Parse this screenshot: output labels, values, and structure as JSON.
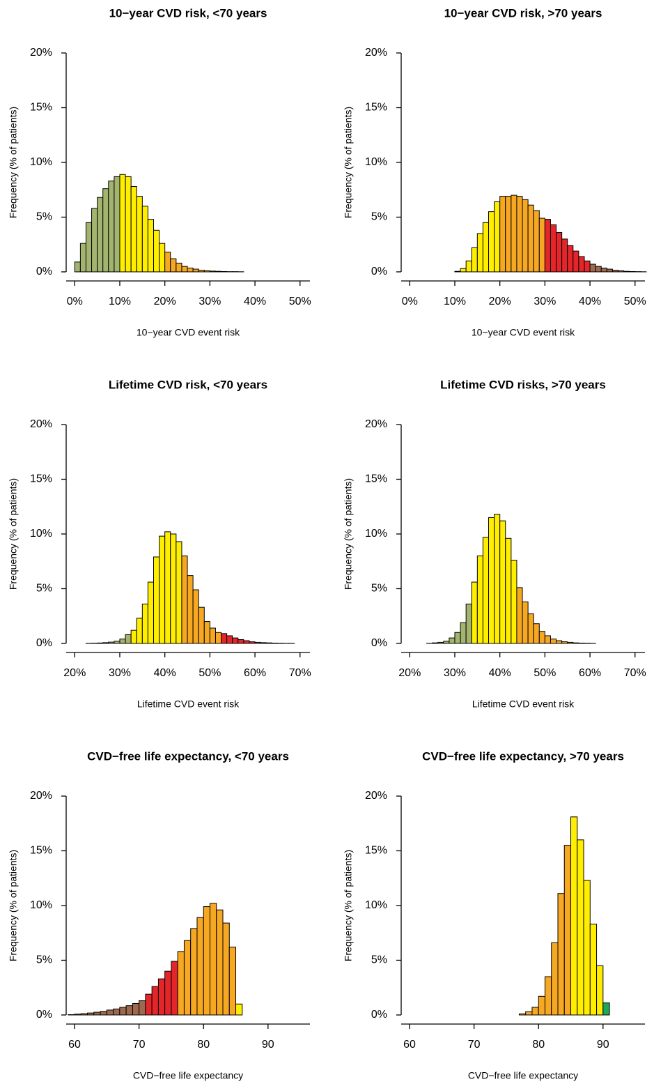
{
  "chart_data": [
    {
      "type": "histogram",
      "title": "10−year CVD risk, <70 years",
      "xlabel": "10−year CVD event risk",
      "ylabel": "Frequency (% of patients)",
      "bins": [
        0,
        1.25,
        2.5,
        3.75,
        5,
        6.25,
        7.5,
        8.75,
        10,
        11.25,
        12.5,
        13.75,
        15,
        16.25,
        17.5,
        18.75,
        20,
        21.25,
        22.5,
        23.75,
        25,
        26.25,
        27.5,
        28.75,
        30,
        31.25,
        32.5,
        33.75,
        35,
        36.25,
        37.5,
        38.75,
        40,
        41.25,
        42.5,
        43.75,
        45,
        46.25,
        47.5,
        48.75,
        50,
        51.25,
        52.5
      ],
      "values": [
        0.9,
        2.6,
        4.5,
        5.8,
        6.8,
        7.6,
        8.3,
        8.7,
        8.9,
        8.7,
        7.8,
        6.9,
        6.0,
        4.8,
        3.8,
        2.6,
        1.8,
        1.2,
        0.8,
        0.5,
        0.35,
        0.25,
        0.15,
        0.1,
        0.07,
        0.05,
        0.03,
        0.02,
        0.02,
        0.01,
        0,
        0,
        0,
        0,
        0,
        0,
        0,
        0,
        0,
        0,
        0,
        0
      ],
      "colors": [
        "#a3b46f",
        "#a3b46f",
        "#a3b46f",
        "#a3b46f",
        "#a3b46f",
        "#a3b46f",
        "#a3b46f",
        "#a3b46f",
        "#ffee00",
        "#ffee00",
        "#ffee00",
        "#ffee00",
        "#ffee00",
        "#ffee00",
        "#ffee00",
        "#ffee00",
        "#f7a823",
        "#f7a823",
        "#f7a823",
        "#f7a823",
        "#f7a823",
        "#f7a823",
        "#f7a823",
        "#f7a823",
        "#f7a823",
        "#f7a823",
        "#f7a823",
        "#f7a823",
        "#f7a823",
        "#f7a823",
        "#f7a823",
        "#f7a823",
        "#f7a823",
        "#f7a823",
        "#f7a823",
        "#f7a823",
        "#f7a823",
        "#f7a823",
        "#f7a823",
        "#f7a823",
        "#f7a823",
        "#f7a823"
      ],
      "xlim": [
        -1.9,
        52.2
      ],
      "ylim": [
        -0.83,
        20
      ],
      "xticks": [
        {
          "value": 0,
          "label": "0%"
        },
        {
          "value": 10,
          "label": "10%"
        },
        {
          "value": 20,
          "label": "20%"
        },
        {
          "value": 30,
          "label": "30%"
        },
        {
          "value": 40,
          "label": "40%"
        },
        {
          "value": 50,
          "label": "50%"
        }
      ],
      "yticks": [
        {
          "value": 0,
          "label": "0%"
        },
        {
          "value": 5,
          "label": "5%"
        },
        {
          "value": 10,
          "label": "10%"
        },
        {
          "value": 15,
          "label": "15%"
        },
        {
          "value": 20,
          "label": "20%"
        }
      ]
    },
    {
      "type": "histogram",
      "title": "10−year CVD risk, >70 years",
      "xlabel": "10−year CVD event risk",
      "ylabel": "Frequency (% of patients)",
      "bins": [
        0,
        1.25,
        2.5,
        3.75,
        5,
        6.25,
        7.5,
        8.75,
        10,
        11.25,
        12.5,
        13.75,
        15,
        16.25,
        17.5,
        18.75,
        20,
        21.25,
        22.5,
        23.75,
        25,
        26.25,
        27.5,
        28.75,
        30,
        31.25,
        32.5,
        33.75,
        35,
        36.25,
        37.5,
        38.75,
        40,
        41.25,
        42.5,
        43.75,
        45,
        46.25,
        47.5,
        48.75,
        50,
        51.25,
        52.5
      ],
      "values": [
        0,
        0,
        0,
        0,
        0,
        0,
        0,
        0,
        0.05,
        0.3,
        1.0,
        2.2,
        3.5,
        4.5,
        5.5,
        6.4,
        6.9,
        6.9,
        7.0,
        6.9,
        6.6,
        6.1,
        5.6,
        4.9,
        4.8,
        4.3,
        3.6,
        3.0,
        2.4,
        1.9,
        1.4,
        1.0,
        0.7,
        0.5,
        0.35,
        0.25,
        0.15,
        0.1,
        0.05,
        0.03,
        0.02,
        0.01
      ],
      "colors": [
        "#ffee00",
        "#ffee00",
        "#ffee00",
        "#ffee00",
        "#ffee00",
        "#ffee00",
        "#ffee00",
        "#ffee00",
        "#ffee00",
        "#ffee00",
        "#ffee00",
        "#ffee00",
        "#ffee00",
        "#ffee00",
        "#ffee00",
        "#ffee00",
        "#f7a823",
        "#f7a823",
        "#f7a823",
        "#f7a823",
        "#f7a823",
        "#f7a823",
        "#f7a823",
        "#f7a823",
        "#e4262b",
        "#e4262b",
        "#e4262b",
        "#e4262b",
        "#e4262b",
        "#e4262b",
        "#e4262b",
        "#e4262b",
        "#9e6a4f",
        "#9e6a4f",
        "#9e6a4f",
        "#9e6a4f",
        "#9e6a4f",
        "#9e6a4f",
        "#9e6a4f",
        "#9e6a4f",
        "#9e6a4f",
        "#9e6a4f"
      ],
      "xlim": [
        -1.9,
        52.2
      ],
      "ylim": [
        -0.83,
        20
      ],
      "xticks": [
        {
          "value": 0,
          "label": "0%"
        },
        {
          "value": 10,
          "label": "10%"
        },
        {
          "value": 20,
          "label": "20%"
        },
        {
          "value": 30,
          "label": "30%"
        },
        {
          "value": 40,
          "label": "40%"
        },
        {
          "value": 50,
          "label": "50%"
        }
      ],
      "yticks": [
        {
          "value": 0,
          "label": "0%"
        },
        {
          "value": 5,
          "label": "5%"
        },
        {
          "value": 10,
          "label": "10%"
        },
        {
          "value": 15,
          "label": "15%"
        },
        {
          "value": 20,
          "label": "20%"
        }
      ]
    },
    {
      "type": "histogram",
      "title": "Lifetime CVD risk, <70 years",
      "xlabel": "Lifetime CVD event risk",
      "ylabel": "Frequency (% of patients)",
      "bins": [
        20,
        21.25,
        22.5,
        23.75,
        25,
        26.25,
        27.5,
        28.75,
        30,
        31.25,
        32.5,
        33.75,
        35,
        36.25,
        37.5,
        38.75,
        40,
        41.25,
        42.5,
        43.75,
        45,
        46.25,
        47.5,
        48.75,
        50,
        51.25,
        52.5,
        53.75,
        55,
        56.25,
        57.5,
        58.75,
        60,
        61.25,
        62.5,
        63.75,
        65,
        66.25,
        67.5,
        68.75,
        70,
        71.25,
        72.5
      ],
      "values": [
        0,
        0,
        0.01,
        0.02,
        0.04,
        0.07,
        0.12,
        0.2,
        0.4,
        0.8,
        1.2,
        2.3,
        3.6,
        5.6,
        7.9,
        9.8,
        10.2,
        10.0,
        9.3,
        8.0,
        6.2,
        4.9,
        3.3,
        2.0,
        1.4,
        1.0,
        0.9,
        0.7,
        0.5,
        0.35,
        0.25,
        0.15,
        0.1,
        0.07,
        0.05,
        0.03,
        0.02,
        0.01,
        0.01,
        0,
        0,
        0
      ],
      "colors": [
        "#a3b46f",
        "#a3b46f",
        "#a3b46f",
        "#a3b46f",
        "#a3b46f",
        "#a3b46f",
        "#a3b46f",
        "#a3b46f",
        "#a3b46f",
        "#a3b46f",
        "#ffee00",
        "#ffee00",
        "#ffee00",
        "#ffee00",
        "#ffee00",
        "#ffee00",
        "#ffee00",
        "#ffee00",
        "#ffee00",
        "#f7a823",
        "#f7a823",
        "#f7a823",
        "#f7a823",
        "#f7a823",
        "#f7a823",
        "#f7a823",
        "#e4262b",
        "#e4262b",
        "#e4262b",
        "#e4262b",
        "#e4262b",
        "#e4262b",
        "#9e6a4f",
        "#9e6a4f",
        "#9e6a4f",
        "#9e6a4f",
        "#9e6a4f",
        "#9e6a4f",
        "#9e6a4f",
        "#9e6a4f",
        "#9e6a4f",
        "#9e6a4f"
      ],
      "xlim": [
        18.1,
        72.2
      ],
      "ylim": [
        -0.83,
        20
      ],
      "xticks": [
        {
          "value": 20,
          "label": "20%"
        },
        {
          "value": 30,
          "label": "30%"
        },
        {
          "value": 40,
          "label": "40%"
        },
        {
          "value": 50,
          "label": "50%"
        },
        {
          "value": 60,
          "label": "60%"
        },
        {
          "value": 70,
          "label": "70%"
        }
      ],
      "yticks": [
        {
          "value": 0,
          "label": "0%"
        },
        {
          "value": 5,
          "label": "5%"
        },
        {
          "value": 10,
          "label": "10%"
        },
        {
          "value": 15,
          "label": "15%"
        },
        {
          "value": 20,
          "label": "20%"
        }
      ]
    },
    {
      "type": "histogram",
      "title": "Lifetime CVD risks, >70 years",
      "xlabel": "Lifetime CVD event risk",
      "ylabel": "Frequency (% of patients)",
      "bins": [
        20,
        21.25,
        22.5,
        23.75,
        25,
        26.25,
        27.5,
        28.75,
        30,
        31.25,
        32.5,
        33.75,
        35,
        36.25,
        37.5,
        38.75,
        40,
        41.25,
        42.5,
        43.75,
        45,
        46.25,
        47.5,
        48.75,
        50,
        51.25,
        52.5,
        53.75,
        55,
        56.25,
        57.5,
        58.75,
        60,
        61.25,
        62.5,
        63.75,
        65,
        66.25,
        67.5,
        68.75,
        70,
        71.25,
        72.5
      ],
      "values": [
        0,
        0,
        0,
        0.01,
        0.05,
        0.1,
        0.2,
        0.5,
        1.0,
        1.9,
        3.6,
        5.6,
        8.0,
        9.7,
        11.5,
        11.8,
        11.2,
        9.6,
        7.6,
        5.1,
        3.8,
        2.7,
        1.8,
        1.1,
        0.7,
        0.4,
        0.25,
        0.15,
        0.1,
        0.05,
        0.03,
        0.02,
        0.01,
        0,
        0,
        0,
        0,
        0,
        0,
        0,
        0,
        0
      ],
      "colors": [
        "#a3b46f",
        "#a3b46f",
        "#a3b46f",
        "#a3b46f",
        "#a3b46f",
        "#a3b46f",
        "#a3b46f",
        "#a3b46f",
        "#a3b46f",
        "#a3b46f",
        "#a3b46f",
        "#ffee00",
        "#ffee00",
        "#ffee00",
        "#ffee00",
        "#ffee00",
        "#ffee00",
        "#ffee00",
        "#ffee00",
        "#f7a823",
        "#f7a823",
        "#f7a823",
        "#f7a823",
        "#f7a823",
        "#f7a823",
        "#f7a823",
        "#f7a823",
        "#f7a823",
        "#f7a823",
        "#f7a823",
        "#f7a823",
        "#f7a823",
        "#f7a823",
        "#f7a823",
        "#f7a823",
        "#f7a823",
        "#f7a823",
        "#f7a823",
        "#f7a823",
        "#f7a823",
        "#f7a823",
        "#f7a823"
      ],
      "xlim": [
        18.1,
        72.2
      ],
      "ylim": [
        -0.83,
        20
      ],
      "xticks": [
        {
          "value": 20,
          "label": "20%"
        },
        {
          "value": 30,
          "label": "30%"
        },
        {
          "value": 40,
          "label": "40%"
        },
        {
          "value": 50,
          "label": "50%"
        },
        {
          "value": 60,
          "label": "60%"
        },
        {
          "value": 70,
          "label": "70%"
        }
      ],
      "yticks": [
        {
          "value": 0,
          "label": "0%"
        },
        {
          "value": 5,
          "label": "5%"
        },
        {
          "value": 10,
          "label": "10%"
        },
        {
          "value": 15,
          "label": "15%"
        },
        {
          "value": 20,
          "label": "20%"
        }
      ]
    },
    {
      "type": "histogram",
      "title": "CVD−free life expectancy, <70 years",
      "xlabel": "CVD−free life expectancy",
      "ylabel": "Frequency (% of patients)",
      "bins": [
        59,
        60,
        61,
        62,
        63,
        64,
        65,
        66,
        67,
        68,
        69,
        70,
        71,
        72,
        73,
        74,
        75,
        76,
        77,
        78,
        79,
        80,
        81,
        82,
        83,
        84,
        85,
        86,
        87,
        88,
        89,
        90,
        91,
        92,
        93,
        94,
        95,
        96
      ],
      "values": [
        0.03,
        0.08,
        0.12,
        0.18,
        0.25,
        0.33,
        0.45,
        0.55,
        0.7,
        0.85,
        1.05,
        1.3,
        1.9,
        2.6,
        3.3,
        4.0,
        4.9,
        5.8,
        6.8,
        7.9,
        8.9,
        9.9,
        10.2,
        9.6,
        8.4,
        6.2,
        1.0,
        0,
        0,
        0,
        0,
        0,
        0,
        0,
        0,
        0,
        0
      ],
      "colors": [
        "#9e6a4f",
        "#9e6a4f",
        "#9e6a4f",
        "#9e6a4f",
        "#9e6a4f",
        "#9e6a4f",
        "#9e6a4f",
        "#9e6a4f",
        "#9e6a4f",
        "#9e6a4f",
        "#9e6a4f",
        "#9e6a4f",
        "#e4262b",
        "#e4262b",
        "#e4262b",
        "#e4262b",
        "#e4262b",
        "#f7a823",
        "#f7a823",
        "#f7a823",
        "#f7a823",
        "#f7a823",
        "#f7a823",
        "#f7a823",
        "#f7a823",
        "#f7a823",
        "#ffee00",
        "#ffee00",
        "#ffee00",
        "#ffee00",
        "#ffee00",
        "#ffee00",
        "#ffee00",
        "#ffee00",
        "#ffee00",
        "#ffee00",
        "#ffee00"
      ],
      "xlim": [
        58.7,
        96.5
      ],
      "ylim": [
        -0.83,
        20
      ],
      "xticks": [
        60,
        70,
        80,
        90
      ],
      "yticks": [
        {
          "value": 0,
          "label": "0%"
        },
        {
          "value": 5,
          "label": "5%"
        },
        {
          "value": 10,
          "label": "10%"
        },
        {
          "value": 15,
          "label": "15%"
        },
        {
          "value": 20,
          "label": "20%"
        }
      ]
    },
    {
      "type": "histogram",
      "title": "CVD−free life expectancy, >70 years",
      "xlabel": "CVD−free life expectancy",
      "ylabel": "Frequency (% of patients)",
      "bins": [
        59,
        60,
        61,
        62,
        63,
        64,
        65,
        66,
        67,
        68,
        69,
        70,
        71,
        72,
        73,
        74,
        75,
        76,
        77,
        78,
        79,
        80,
        81,
        82,
        83,
        84,
        85,
        86,
        87,
        88,
        89,
        90,
        91,
        92,
        93,
        94,
        95,
        96
      ],
      "values": [
        0,
        0,
        0,
        0,
        0,
        0,
        0,
        0,
        0,
        0,
        0,
        0,
        0,
        0,
        0,
        0,
        0,
        0,
        0.1,
        0.3,
        0.7,
        1.7,
        3.5,
        6.6,
        11.1,
        15.5,
        18.1,
        16.0,
        12.3,
        8.3,
        4.5,
        1.1,
        0,
        0,
        0,
        0,
        0
      ],
      "colors": [
        "#f7a823",
        "#f7a823",
        "#f7a823",
        "#f7a823",
        "#f7a823",
        "#f7a823",
        "#f7a823",
        "#f7a823",
        "#f7a823",
        "#f7a823",
        "#f7a823",
        "#f7a823",
        "#f7a823",
        "#f7a823",
        "#f7a823",
        "#f7a823",
        "#f7a823",
        "#f7a823",
        "#f7a823",
        "#f7a823",
        "#f7a823",
        "#f7a823",
        "#f7a823",
        "#f7a823",
        "#f7a823",
        "#f7a823",
        "#ffee00",
        "#ffee00",
        "#ffee00",
        "#ffee00",
        "#ffee00",
        "#1fa85a",
        "#1fa85a",
        "#1fa85a",
        "#1fa85a",
        "#1fa85a",
        "#1fa85a"
      ],
      "xlim": [
        58.7,
        96.5
      ],
      "ylim": [
        -0.83,
        20
      ],
      "xticks": [
        60,
        70,
        80,
        90
      ],
      "yticks": [
        {
          "value": 0,
          "label": "0%"
        },
        {
          "value": 5,
          "label": "5%"
        },
        {
          "value": 10,
          "label": "10%"
        },
        {
          "value": 15,
          "label": "15%"
        },
        {
          "value": 20,
          "label": "20%"
        }
      ]
    }
  ]
}
